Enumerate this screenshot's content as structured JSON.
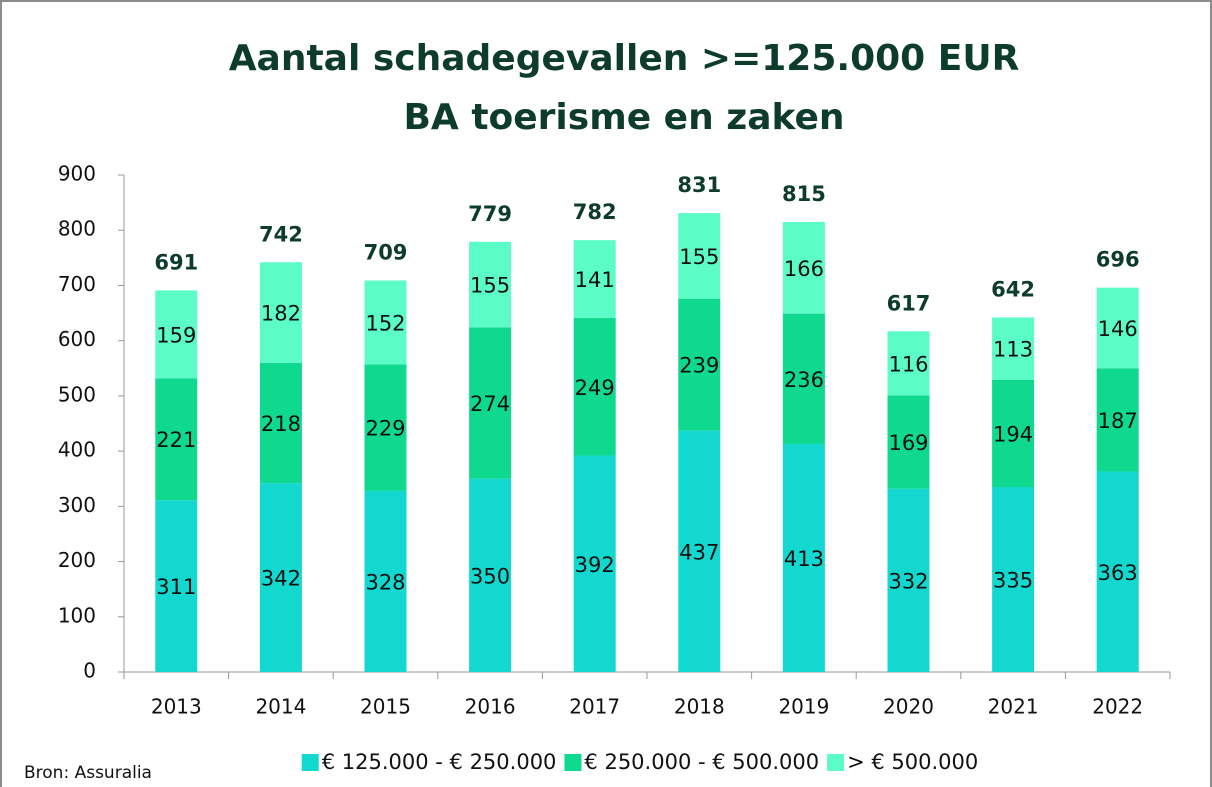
{
  "chart_data": {
    "type": "stacked_bar",
    "title": "Aantal schadegevallen >=125.000 EUR",
    "subtitle": "BA toerisme en zaken",
    "categories": [
      "2013",
      "2014",
      "2015",
      "2016",
      "2017",
      "2018",
      "2019",
      "2020",
      "2021",
      "2022"
    ],
    "series": [
      {
        "name": "€ 125.000 - € 250.000",
        "color": "#12d8d0",
        "values": [
          311,
          342,
          328,
          350,
          392,
          437,
          413,
          332,
          335,
          363
        ]
      },
      {
        "name": "€ 250.000 - € 500.000",
        "color": "#0fd88f",
        "values": [
          221,
          218,
          229,
          274,
          249,
          239,
          236,
          169,
          194,
          187
        ]
      },
      {
        "name": "> € 500.000",
        "color": "#5cfcc6",
        "values": [
          159,
          182,
          152,
          155,
          141,
          155,
          166,
          116,
          113,
          146
        ]
      }
    ],
    "totals": [
      691,
      742,
      709,
      779,
      782,
      831,
      815,
      617,
      642,
      696
    ],
    "ylim": [
      0,
      900
    ],
    "yticks": [
      0,
      100,
      200,
      300,
      400,
      500,
      600,
      700,
      800,
      900
    ],
    "legend": "bottom",
    "source": "Bron: Assuralia"
  }
}
